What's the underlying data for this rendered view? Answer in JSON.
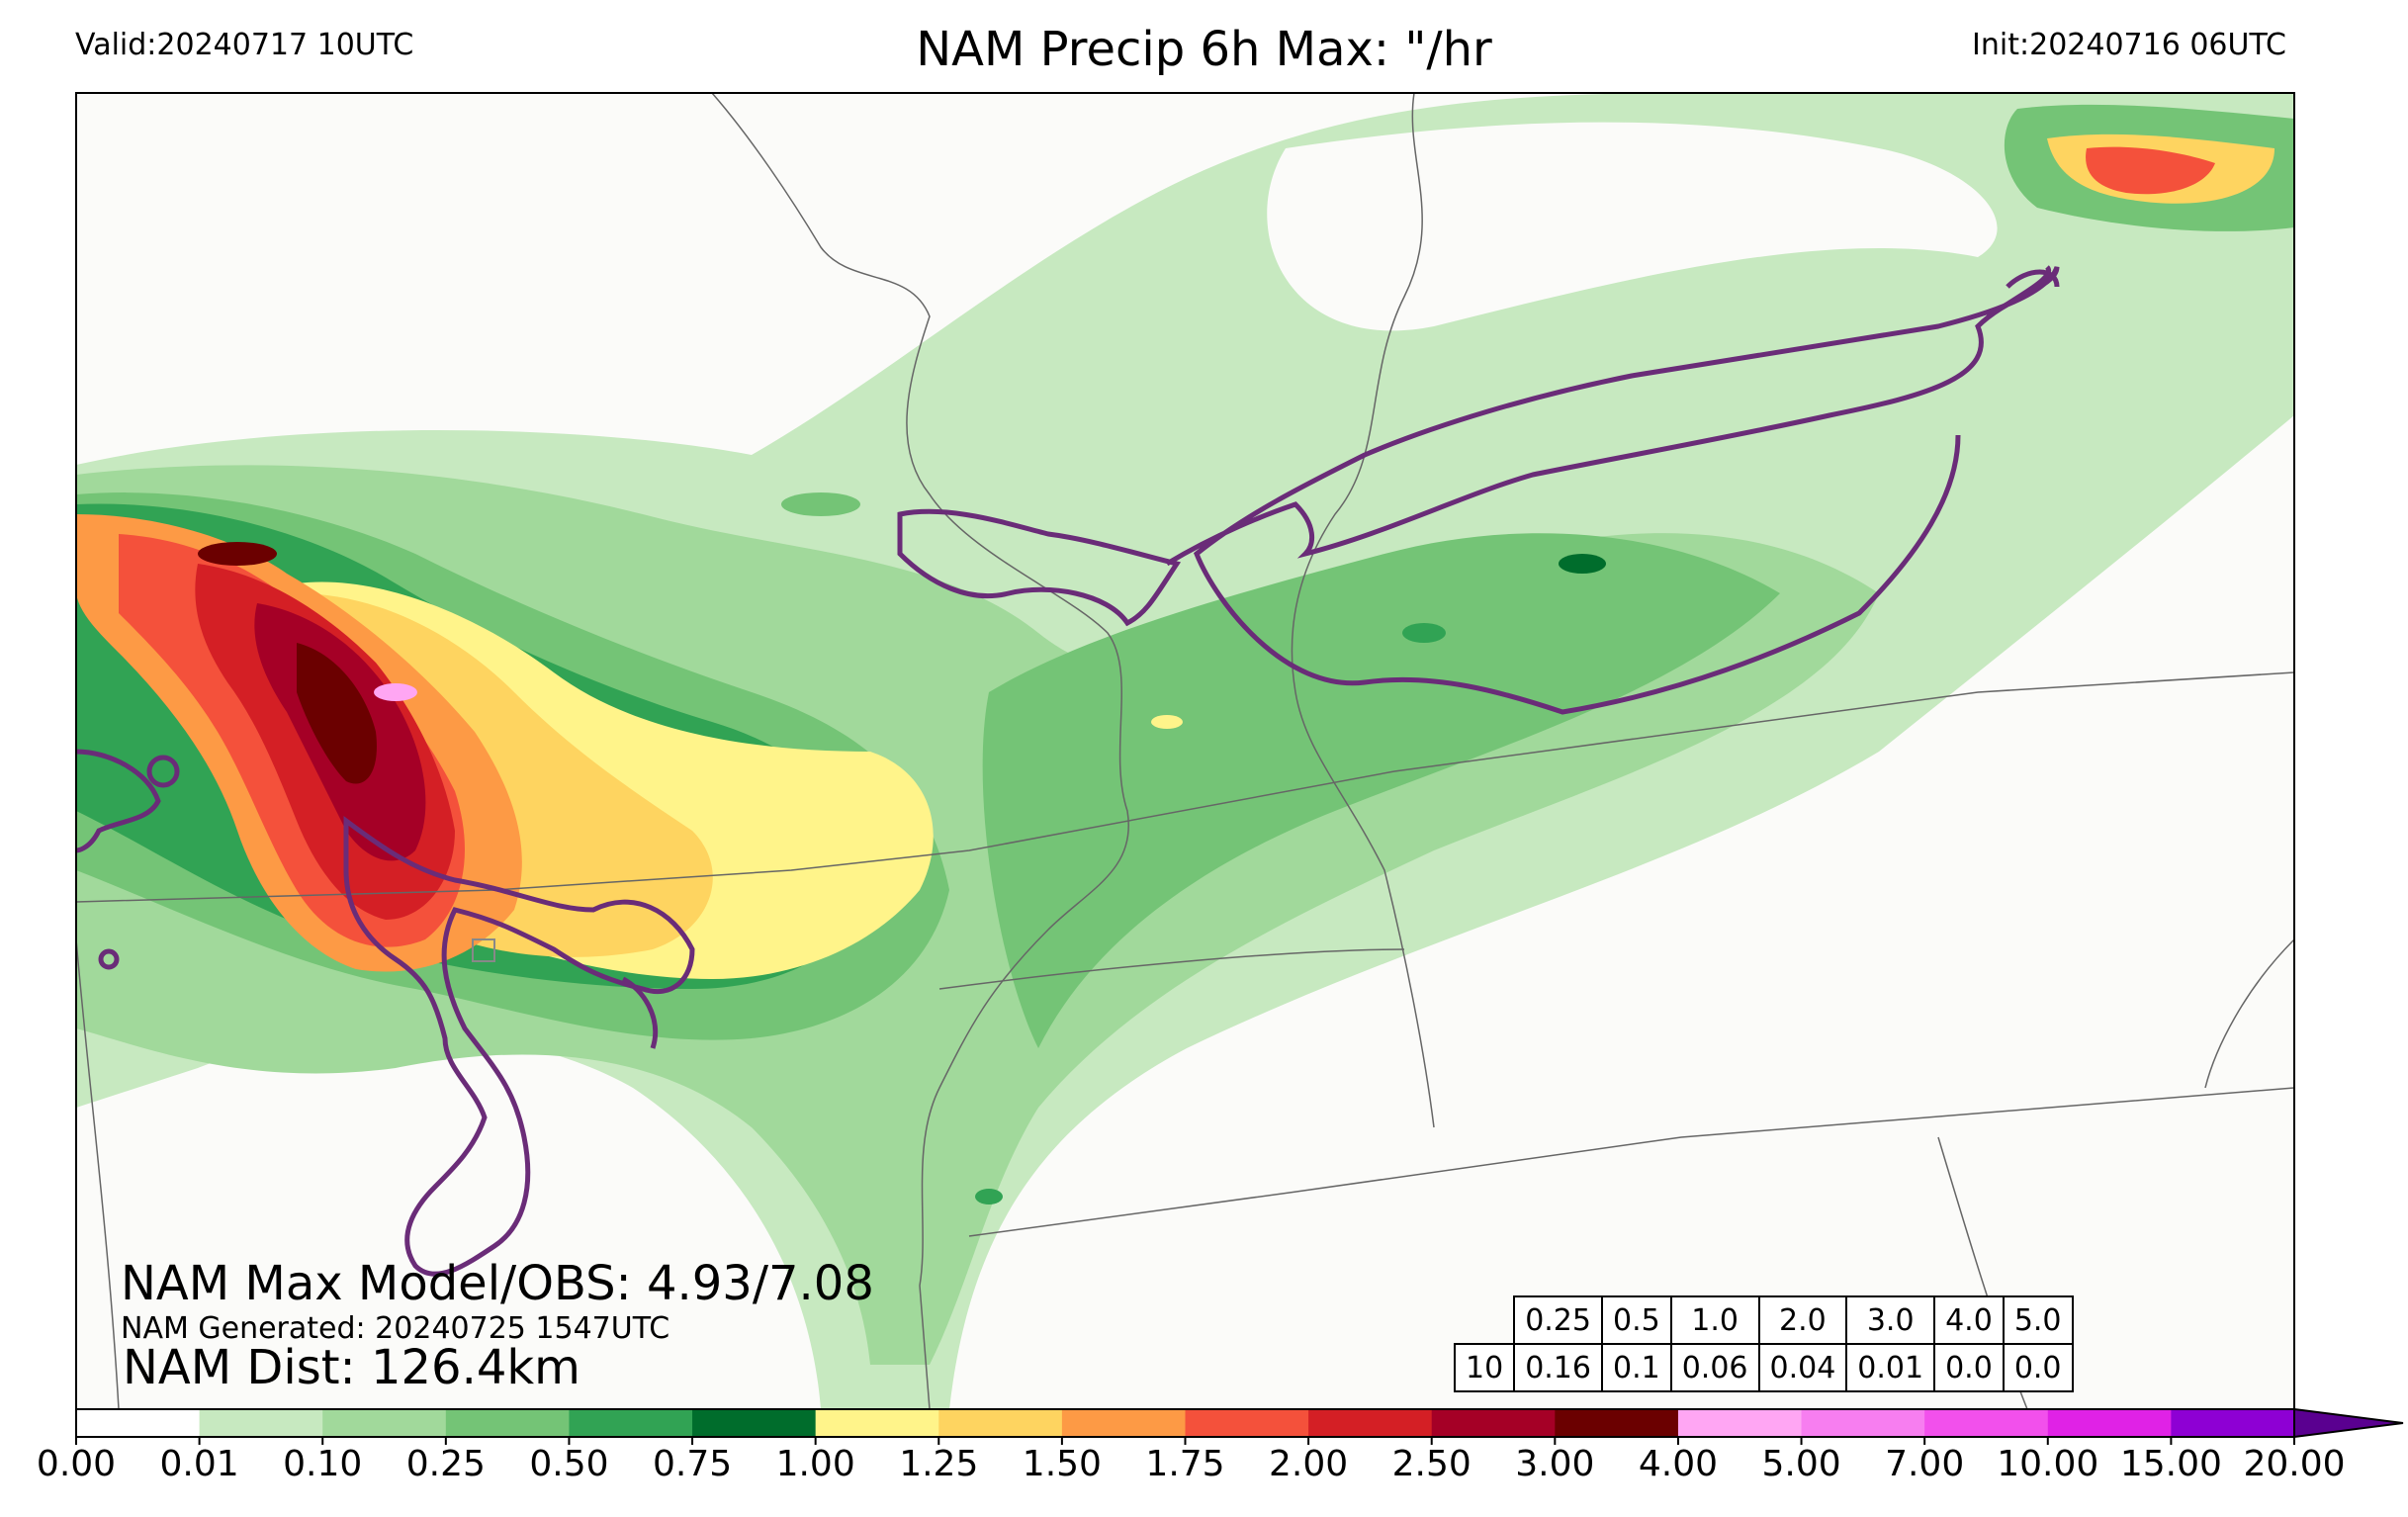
{
  "header": {
    "valid": "Valid:20240717 10UTC",
    "title": "NAM Precip 6h Max: \"/hr",
    "init": "Init:20240716 06UTC"
  },
  "overlay": {
    "max_model_obs": "NAM Max Model/OBS: 4.93/7.08",
    "generated": "NAM Generated: 20240725 1547UTC",
    "dist": "NAM Dist: 126.4km"
  },
  "stats_table": {
    "thresholds": [
      "0.25",
      "0.5",
      "1.0",
      "2.0",
      "3.0",
      "4.0",
      "5.0"
    ],
    "row_label": "10",
    "values": [
      "0.16",
      "0.1",
      "0.06",
      "0.04",
      "0.01",
      "0.0",
      "0.0"
    ]
  },
  "colorbar": {
    "ticks": [
      "0.00",
      "0.01",
      "0.10",
      "0.25",
      "0.50",
      "0.75",
      "1.00",
      "1.25",
      "1.50",
      "1.75",
      "2.00",
      "2.50",
      "3.00",
      "4.00",
      "5.00",
      "7.00",
      "10.00",
      "15.00",
      "20.00"
    ],
    "colors": [
      "#ffffff",
      "#c7e9c0",
      "#a1d99b",
      "#74c476",
      "#31a354",
      "#006d2c",
      "#fff48a",
      "#fed460",
      "#fd9a45",
      "#f4513b",
      "#d41f25",
      "#a50026",
      "#6b0000",
      "#ffa6f3",
      "#f77ef0",
      "#f250ec",
      "#e022e6",
      "#8e00d4"
    ],
    "extend_color": "#5a0090"
  },
  "map_colors": {
    "c1": "#c7e9c0",
    "c2": "#a1d99b",
    "c3": "#74c476",
    "c4": "#31a354",
    "c5": "#006d2c",
    "y1": "#fff48a",
    "y2": "#fed460",
    "o1": "#fd9a45",
    "r1": "#f4513b",
    "r2": "#d41f25",
    "r3": "#a50026",
    "r4": "#6b0000",
    "p1": "#ffa6f3",
    "obs_contour": "#6a2c78",
    "border": "#666666",
    "background": "#fbfbf9"
  }
}
